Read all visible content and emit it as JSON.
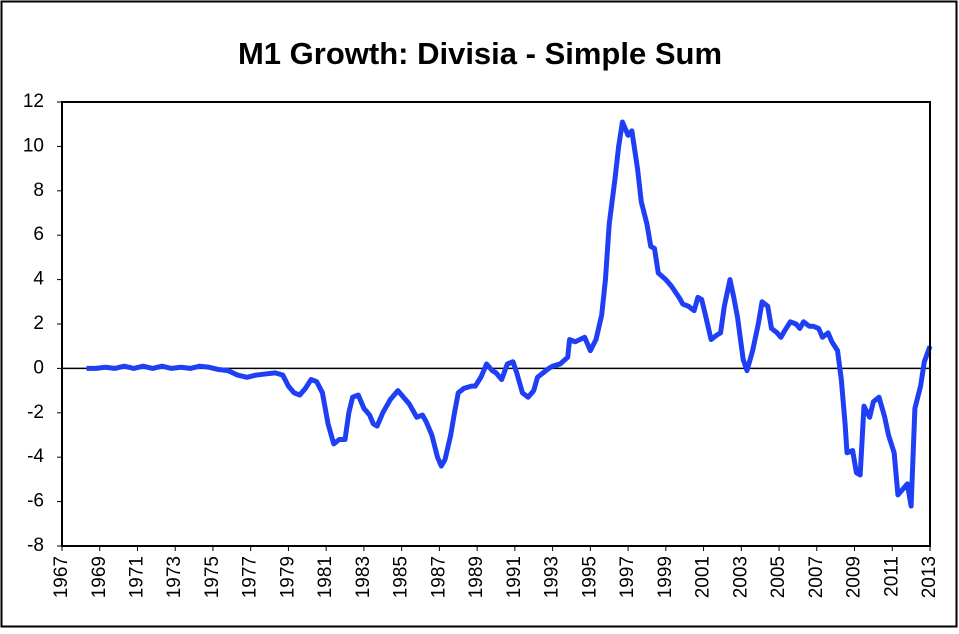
{
  "chart_data": {
    "type": "line",
    "title": "M1 Growth: Divisia - Simple Sum",
    "x": [
      1968.3,
      1968.8,
      1969.3,
      1969.8,
      1970.3,
      1970.8,
      1971.3,
      1971.8,
      1972.3,
      1972.8,
      1973.3,
      1973.8,
      1974.3,
      1974.8,
      1975.3,
      1975.8,
      1976.3,
      1976.8,
      1977.3,
      1977.8,
      1978.3,
      1978.7,
      1979.0,
      1979.3,
      1979.6,
      1979.9,
      1980.2,
      1980.5,
      1980.8,
      1981.1,
      1981.4,
      1981.7,
      1982.0,
      1982.2,
      1982.4,
      1982.7,
      1983.0,
      1983.3,
      1983.5,
      1983.7,
      1984.0,
      1984.4,
      1984.8,
      1985.2,
      1985.4,
      1985.8,
      1986.1,
      1986.3,
      1986.6,
      1986.9,
      1987.1,
      1987.3,
      1987.6,
      1987.8,
      1988.0,
      1988.3,
      1988.7,
      1988.9,
      1989.2,
      1989.5,
      1989.8,
      1990.0,
      1990.3,
      1990.6,
      1990.9,
      1991.1,
      1991.4,
      1991.7,
      1992.0,
      1992.2,
      1992.5,
      1992.8,
      1993.0,
      1993.4,
      1993.8,
      1993.9,
      1994.2,
      1994.7,
      1995.0,
      1995.3,
      1995.6,
      1995.8,
      1996.0,
      1996.3,
      1996.5,
      1996.7,
      1997.0,
      1997.2,
      1997.5,
      1997.7,
      1998.0,
      1998.2,
      1998.4,
      1998.6,
      1999.0,
      1999.3,
      1999.7,
      1999.9,
      2000.2,
      2000.5,
      2000.7,
      2000.9,
      2001.1,
      2001.4,
      2001.7,
      2001.9,
      2002.1,
      2002.4,
      2002.6,
      2002.8,
      2003.1,
      2003.3,
      2003.6,
      2003.9,
      2004.1,
      2004.4,
      2004.6,
      2004.9,
      2005.1,
      2005.3,
      2005.6,
      2005.9,
      2006.1,
      2006.3,
      2006.6,
      2006.8,
      2007.1,
      2007.3,
      2007.6,
      2007.8,
      2008.1,
      2008.3,
      2008.5,
      2008.6,
      2008.9,
      2009.1,
      2009.3,
      2009.5,
      2009.8,
      2010.0,
      2010.3,
      2010.6,
      2010.8,
      2011.1,
      2011.3,
      2011.5,
      2011.8,
      2012.0,
      2012.2,
      2012.5,
      2012.7,
      2013.0
    ],
    "values": [
      0,
      0,
      0.05,
      0,
      0.1,
      0,
      0.1,
      0,
      0.1,
      0,
      0.05,
      0,
      0.1,
      0.05,
      -0.05,
      -0.1,
      -0.3,
      -0.4,
      -0.3,
      -0.25,
      -0.2,
      -0.3,
      -0.8,
      -1.1,
      -1.2,
      -0.9,
      -0.5,
      -0.6,
      -1.1,
      -2.5,
      -3.4,
      -3.2,
      -3.2,
      -2.0,
      -1.3,
      -1.2,
      -1.8,
      -2.1,
      -2.5,
      -2.6,
      -2.0,
      -1.4,
      -1.0,
      -1.4,
      -1.6,
      -2.2,
      -2.1,
      -2.4,
      -3.0,
      -4.0,
      -4.4,
      -4.1,
      -3.0,
      -2.0,
      -1.1,
      -0.9,
      -0.8,
      -0.8,
      -0.4,
      0.2,
      -0.1,
      -0.2,
      -0.5,
      0.2,
      0.3,
      -0.2,
      -1.1,
      -1.3,
      -1.0,
      -0.4,
      -0.2,
      0.0,
      0.1,
      0.2,
      0.5,
      1.3,
      1.2,
      1.4,
      0.8,
      1.3,
      2.4,
      4.0,
      6.5,
      8.5,
      10.0,
      11.1,
      10.5,
      10.7,
      9.0,
      7.5,
      6.5,
      5.5,
      5.4,
      4.3,
      4.0,
      3.7,
      3.2,
      2.9,
      2.8,
      2.6,
      3.2,
      3.1,
      2.4,
      1.3,
      1.5,
      1.6,
      2.8,
      4.0,
      3.2,
      2.3,
      0.4,
      -0.1,
      0.8,
      2.0,
      3.0,
      2.8,
      1.8,
      1.6,
      1.4,
      1.7,
      2.1,
      2.0,
      1.8,
      2.1,
      1.9,
      1.9,
      1.8,
      1.4,
      1.6,
      1.2,
      0.8,
      -0.5,
      -2.5,
      -3.8,
      -3.7,
      -4.7,
      -4.8,
      -1.7,
      -2.2,
      -1.5,
      -1.3,
      -2.2,
      -3.0,
      -3.8,
      -5.7,
      -5.5,
      -5.2,
      -6.2,
      -1.8,
      -0.8,
      0.3,
      1.0
    ],
    "color": "#1f3ff5",
    "xlim": [
      1967,
      2013
    ],
    "xticks": [
      1967,
      1969,
      1971,
      1973,
      1975,
      1977,
      1979,
      1981,
      1983,
      1985,
      1987,
      1989,
      1991,
      1993,
      1995,
      1997,
      1999,
      2001,
      2003,
      2005,
      2007,
      2009,
      2011,
      2013
    ],
    "ylim": [
      -8,
      12
    ],
    "yticks": [
      -8,
      -6,
      -4,
      -2,
      0,
      2,
      4,
      6,
      8,
      10,
      12
    ],
    "grid": false
  }
}
